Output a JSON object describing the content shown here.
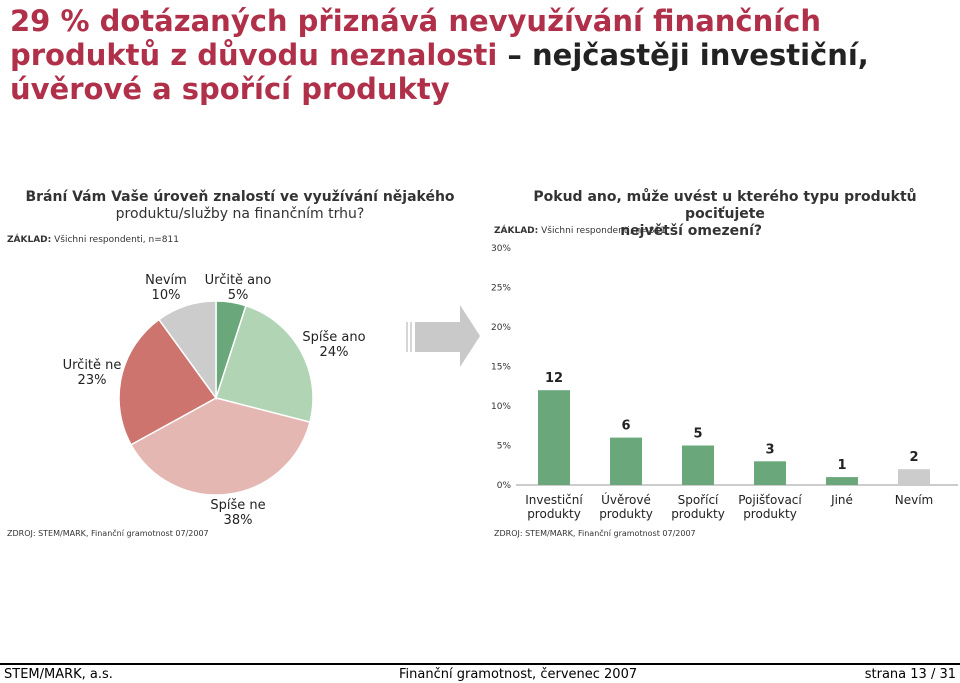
{
  "title_line1": "29 % dotázaných přiznává nevyužívání finančních",
  "title_line2_a": "produktů z důvodu neznalosti",
  "title_line2_b": " – nejčastěji investiční,",
  "title_line3": "úvěrové a spořící produkty",
  "left": {
    "question_line1": "Brání Vám Vaše úroveň znalostí ve využívání nějakého",
    "question_line2": "produktu/služby na finančním trhu?",
    "base_label": "ZÁKLAD:",
    "base_text": " Všichni respondenti, n=811",
    "source": "ZDROJ: STEM/MARK, Finanční gramotnost 07/2007"
  },
  "right": {
    "question_line1": "Pokud ano, může uvést u kterého typu produktů pociťujete",
    "question_line2": "největší omezení?",
    "base_label": "ZÁKLAD:",
    "base_text": " Všichni respondenti, n=811",
    "source": "ZDROJ: STEM/MARK, Finanční gramotnost 07/2007"
  },
  "chart_data": [
    {
      "type": "pie",
      "slices": [
        {
          "label": "Určitě ano",
          "value": 5,
          "value_label": "5%",
          "color": "#6aa77a"
        },
        {
          "label": "Spíše ano",
          "value": 24,
          "value_label": "24%",
          "color": "#b0d4b4"
        },
        {
          "label": "Spíše ne",
          "value": 38,
          "value_label": "38%",
          "color": "#e5b7b3"
        },
        {
          "label": "Určitě ne",
          "value": 23,
          "value_label": "23%",
          "color": "#cd746f"
        },
        {
          "label": "Nevím",
          "value": 10,
          "value_label": "10%",
          "color": "#cccccc"
        }
      ]
    },
    {
      "type": "bar",
      "categories": [
        [
          "Investiční",
          "produkty"
        ],
        [
          "Úvěrové",
          "produkty"
        ],
        [
          "Spořící",
          "produkty"
        ],
        [
          "Pojišťovací",
          "produkty"
        ],
        [
          "Jiné"
        ],
        [
          "Nevím"
        ]
      ],
      "values": [
        12,
        6,
        5,
        3,
        1,
        2
      ],
      "colors": [
        "#6aa77a",
        "#6aa77a",
        "#6aa77a",
        "#6aa77a",
        "#6aa77a",
        "#cccccc"
      ],
      "yticks": [
        "0%",
        "5%",
        "10%",
        "15%",
        "20%",
        "25%",
        "30%"
      ],
      "ylim": [
        0,
        30
      ]
    }
  ],
  "footer": {
    "left": "STEM/MARK, a.s.",
    "center": "Finanční gramotnost, červenec 2007",
    "right": "strana 13 / 31"
  }
}
